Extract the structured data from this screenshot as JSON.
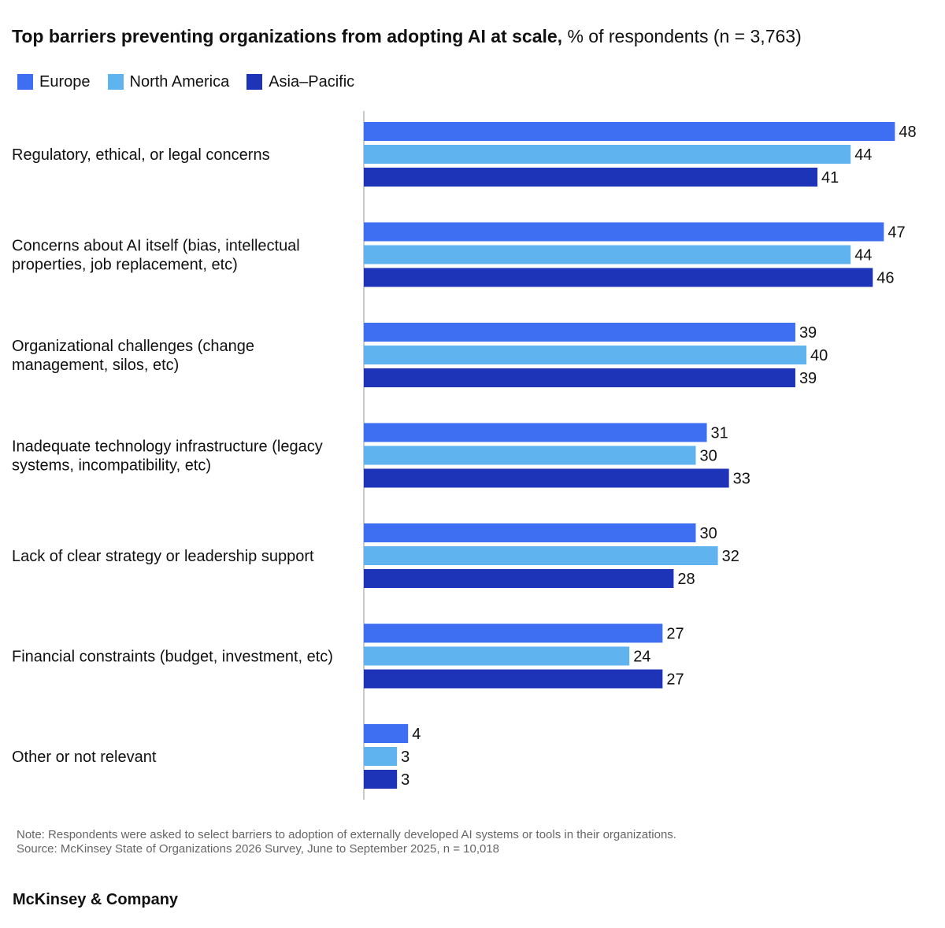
{
  "chart_data": {
    "type": "bar",
    "orientation": "horizontal",
    "title": "Top barriers preventing organizations from adopting AI at scale,",
    "subtitle": "% of respondents (n = 3,763)",
    "categories": [
      [
        "Regulatory, ethical, or legal concerns"
      ],
      [
        "Concerns about AI itself (bias, intellectual",
        "properties, job replacement, etc)"
      ],
      [
        "Organizational challenges (change",
        "management, silos, etc)"
      ],
      [
        "Inadequate technology infrastructure (legacy",
        "systems, incompatibility, etc)"
      ],
      [
        "Lack of clear strategy or leadership support"
      ],
      [
        "Financial constraints (budget, investment, etc)"
      ],
      [
        "Other or not relevant"
      ]
    ],
    "series": [
      {
        "name": "Europe",
        "color": "#3e6ff2",
        "values": [
          48,
          47,
          39,
          31,
          30,
          27,
          4
        ]
      },
      {
        "name": "North America",
        "color": "#5fb4ef",
        "values": [
          44,
          44,
          40,
          30,
          32,
          24,
          3
        ]
      },
      {
        "name": "Asia–Pacific",
        "color": "#1d34b8",
        "values": [
          41,
          46,
          39,
          33,
          28,
          27,
          3
        ]
      }
    ],
    "xlim": [
      0,
      48
    ],
    "legend_position": "top-left",
    "grid": false
  },
  "note": "Note: Respondents were asked to select barriers to adoption of externally developed AI systems or tools in their organizations.",
  "source": "Source: McKinsey State of Organizations 2026 Survey, June to September 2025, n = 10,018",
  "brand": "McKinsey & Company",
  "axis_color": "#b8b8b8"
}
